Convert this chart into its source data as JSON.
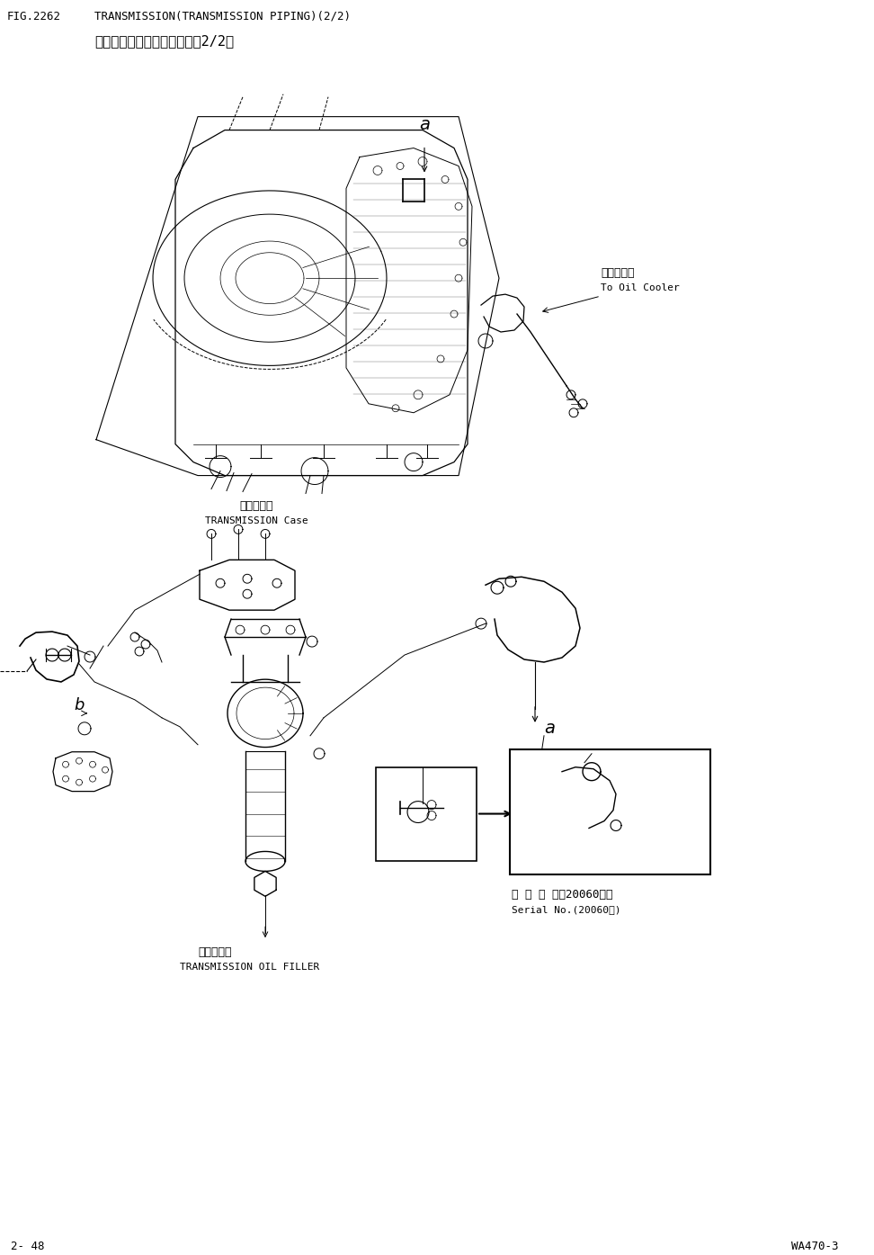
{
  "fig_number": "FIG.2262",
  "title_en": "TRANSMISSION(TRANSMISSION PIPING)(2/2)",
  "title_jp": "変速笱（変速笱液圧管路）（2/2）",
  "page_left": "2- 48",
  "page_right": "WA470-3",
  "bg_color": "#ffffff",
  "line_color": "#000000",
  "label_a_top": "a",
  "label_a_bottom": "a",
  "label_b": "b",
  "transmission_case_jp": "変速笱壳体",
  "transmission_case_en": "TRANSMISSION Case",
  "oil_cooler_jp": "至油冷却器",
  "oil_cooler_en": "To Oil Cooler",
  "oil_filler_jp": "変速笱油滤",
  "oil_filler_en": "TRANSMISSION OIL FILLER",
  "serial_jp": "適 用 号 機（20060～）",
  "serial_en": "Serial No.(20060～)",
  "font_monospace": "DejaVu Sans Mono",
  "lw_main": 1.0,
  "lw_thin": 0.6,
  "lw_thick": 1.5
}
